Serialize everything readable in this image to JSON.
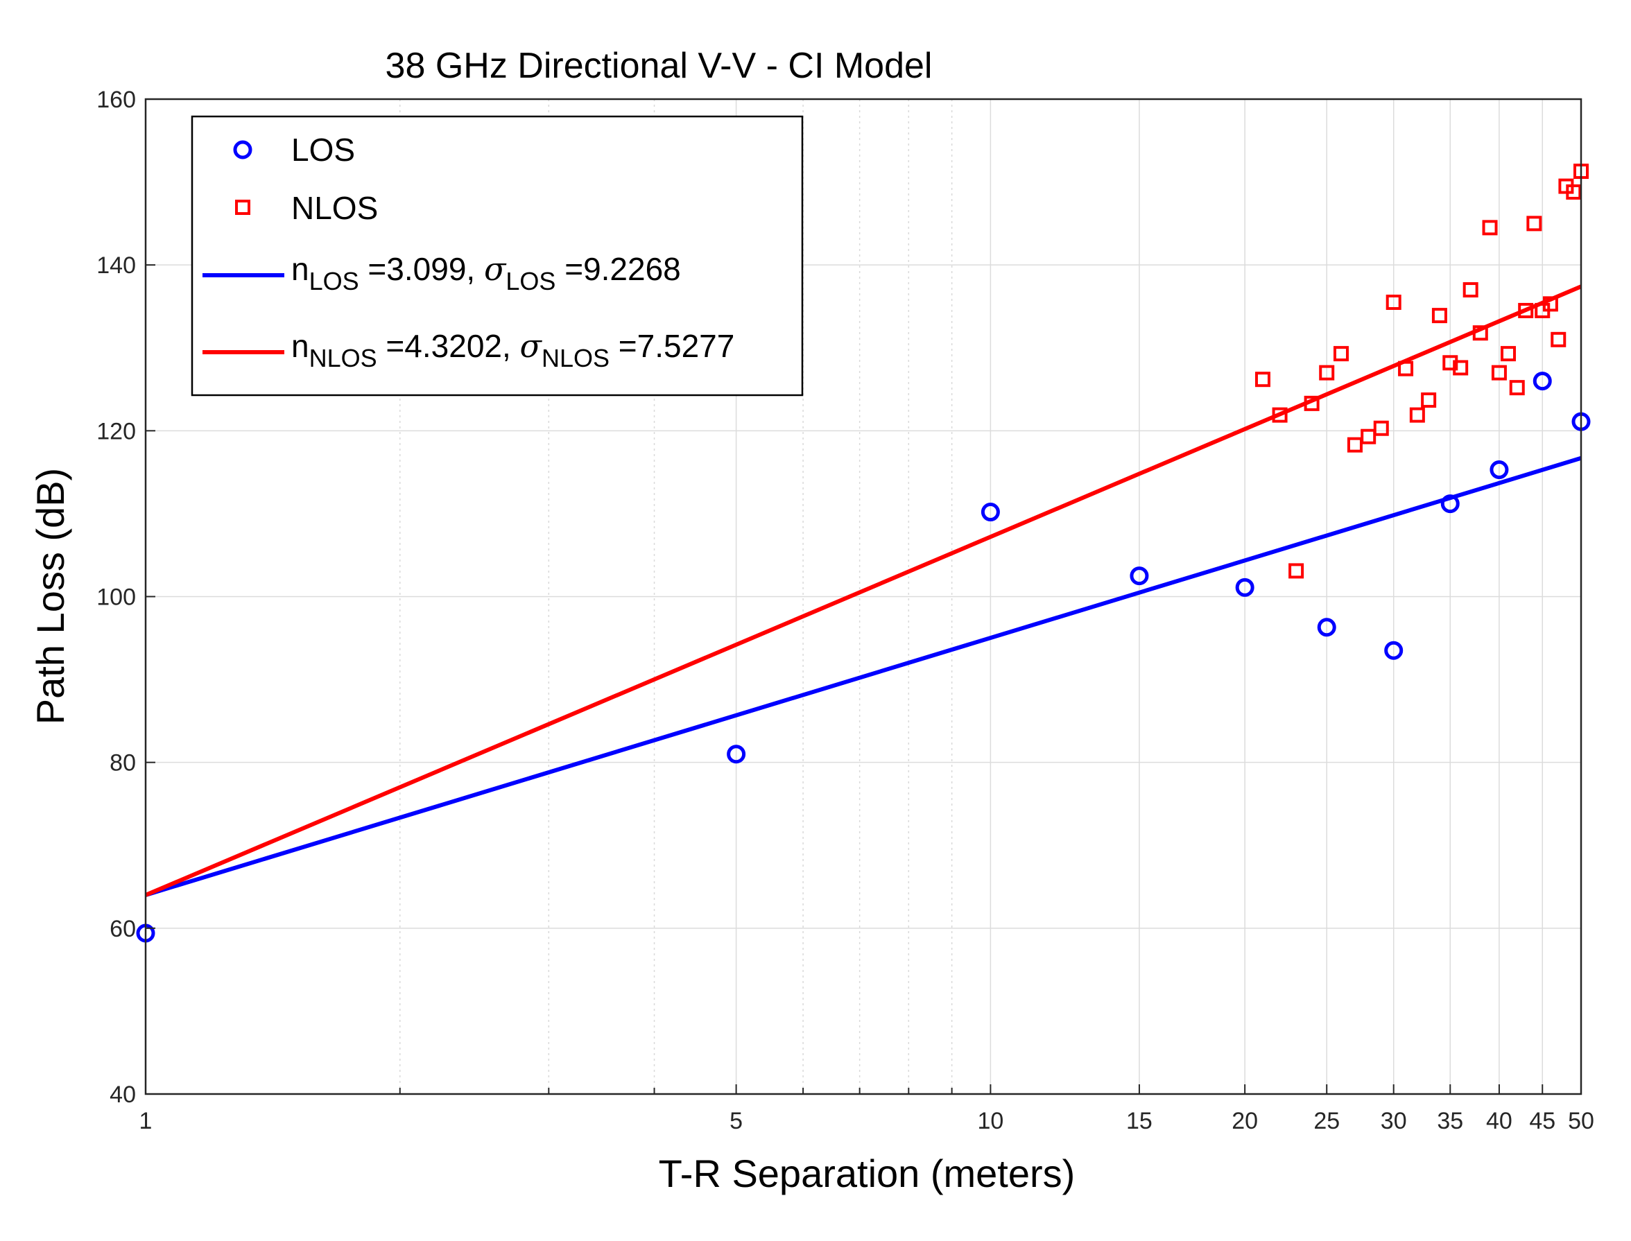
{
  "chart_data": {
    "type": "scatter",
    "title": "38 GHz Directional V-V - CI Model",
    "xlabel": "T-R Separation (meters)",
    "ylabel": "Path Loss (dB)",
    "x_scale": "log",
    "xlim": [
      1,
      50
    ],
    "ylim": [
      40,
      160
    ],
    "x_ticks": [
      1,
      5,
      10,
      15,
      20,
      25,
      30,
      35,
      40,
      45,
      50
    ],
    "y_ticks": [
      40,
      60,
      80,
      100,
      120,
      140,
      160
    ],
    "grid": true,
    "legend_position": "top-left",
    "series": [
      {
        "name": "LOS",
        "kind": "points",
        "marker": "circle",
        "color": "#0000ff",
        "points": [
          {
            "x": 1,
            "y": 59.4
          },
          {
            "x": 5,
            "y": 81.0
          },
          {
            "x": 10,
            "y": 110.2
          },
          {
            "x": 15,
            "y": 102.5
          },
          {
            "x": 20,
            "y": 101.1
          },
          {
            "x": 25,
            "y": 96.3
          },
          {
            "x": 30,
            "y": 93.5
          },
          {
            "x": 35,
            "y": 111.2
          },
          {
            "x": 40,
            "y": 115.3
          },
          {
            "x": 45,
            "y": 126.0
          },
          {
            "x": 50,
            "y": 121.1
          }
        ]
      },
      {
        "name": "NLOS",
        "kind": "points",
        "marker": "square",
        "color": "#ff0000",
        "points": [
          {
            "x": 21,
            "y": 126.2
          },
          {
            "x": 22,
            "y": 121.9
          },
          {
            "x": 23,
            "y": 103.1
          },
          {
            "x": 24,
            "y": 123.3
          },
          {
            "x": 25,
            "y": 127.0
          },
          {
            "x": 26,
            "y": 129.3
          },
          {
            "x": 27,
            "y": 118.3
          },
          {
            "x": 28,
            "y": 119.3
          },
          {
            "x": 29,
            "y": 120.3
          },
          {
            "x": 30,
            "y": 135.5
          },
          {
            "x": 31,
            "y": 127.5
          },
          {
            "x": 32,
            "y": 121.9
          },
          {
            "x": 33,
            "y": 123.7
          },
          {
            "x": 34,
            "y": 133.9
          },
          {
            "x": 35,
            "y": 128.2
          },
          {
            "x": 36,
            "y": 127.6
          },
          {
            "x": 37,
            "y": 137.0
          },
          {
            "x": 38,
            "y": 131.8
          },
          {
            "x": 39,
            "y": 144.5
          },
          {
            "x": 40,
            "y": 127.0
          },
          {
            "x": 41,
            "y": 129.3
          },
          {
            "x": 42,
            "y": 125.2
          },
          {
            "x": 43,
            "y": 134.5
          },
          {
            "x": 44,
            "y": 145.0
          },
          {
            "x": 45,
            "y": 134.5
          },
          {
            "x": 46,
            "y": 135.3
          },
          {
            "x": 47,
            "y": 131.0
          },
          {
            "x": 48,
            "y": 149.5
          },
          {
            "x": 49,
            "y": 148.8
          },
          {
            "x": 50,
            "y": 151.3
          }
        ]
      },
      {
        "kind": "line",
        "color": "#0000ff",
        "legend_main": "n",
        "legend_sub": "LOS",
        "legend_rest": " =3.099, ",
        "legend_sigma": "σ",
        "legend_sigma_sub": "LOS",
        "legend_tail": " =9.2268",
        "points": [
          {
            "x": 1,
            "y": 64.0
          },
          {
            "x": 50,
            "y": 116.7
          }
        ]
      },
      {
        "kind": "line",
        "color": "#ff0000",
        "legend_main": "n",
        "legend_sub": "NLOS",
        "legend_rest": " =4.3202, ",
        "legend_sigma": "σ",
        "legend_sigma_sub": "NLOS",
        "legend_tail": " =7.5277",
        "points": [
          {
            "x": 1,
            "y": 64.0
          },
          {
            "x": 50,
            "y": 137.4
          }
        ]
      }
    ]
  }
}
